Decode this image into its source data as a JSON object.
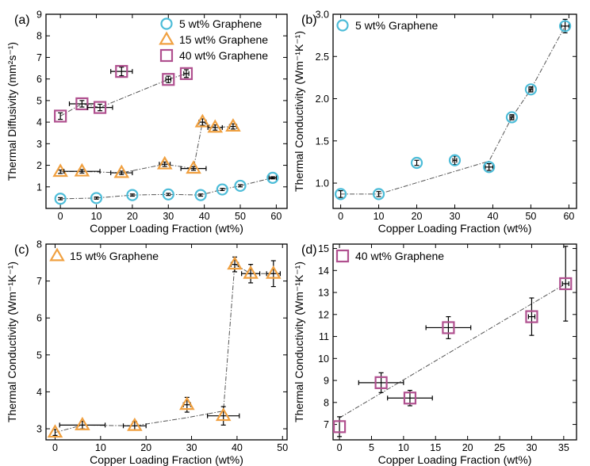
{
  "colors": {
    "s5": "#4cbcd8",
    "s15": "#f0a040",
    "s40": "#b0508f"
  },
  "chart_data": [
    {
      "id": "a",
      "type": "scatter",
      "panel_label": "(a)",
      "xlabel": "Copper Loading Fraction (wt%)",
      "ylabel": "Thermal Diffusivity (mm²s⁻¹)",
      "xlim": [
        -4,
        63
      ],
      "ylim": [
        0,
        9
      ],
      "xticks": [
        0,
        10,
        20,
        30,
        40,
        50,
        60
      ],
      "yticks": [
        1,
        2,
        3,
        4,
        5,
        6,
        7,
        8,
        9
      ],
      "legend_position": "top-right",
      "series": [
        {
          "name": "5 wt% Graphene",
          "marker": "circle",
          "color": "#4cbcd8",
          "points": [
            [
              0,
              0.45,
              0,
              0.05
            ],
            [
              10,
              0.48,
              0,
              0.05
            ],
            [
              20,
              0.62,
              0,
              0.05
            ],
            [
              30,
              0.65,
              0,
              0.05
            ],
            [
              39,
              0.62,
              0,
              0.05
            ],
            [
              45,
              0.88,
              0,
              0.05
            ],
            [
              50,
              1.05,
              0,
              0.05
            ],
            [
              59,
              1.42,
              1,
              0.05
            ]
          ],
          "fit": [
            [
              0,
              0.45
            ],
            [
              10,
              0.48
            ],
            [
              20,
              0.62
            ],
            [
              30,
              0.65
            ],
            [
              39,
              0.62
            ],
            [
              45,
              0.88
            ],
            [
              50,
              1.05
            ],
            [
              59,
              1.42
            ]
          ]
        },
        {
          "name": "15 wt% Graphene",
          "marker": "triangle",
          "color": "#f0a040",
          "points": [
            [
              0,
              1.7,
              0,
              0.08
            ],
            [
              6,
              1.72,
              5,
              0.08
            ],
            [
              17,
              1.65,
              3,
              0.08
            ],
            [
              29,
              2.05,
              1.5,
              0.1
            ],
            [
              37,
              1.85,
              3.5,
              0.08
            ],
            [
              39.5,
              4.0,
              1,
              0.15
            ],
            [
              43,
              3.75,
              2,
              0.12
            ],
            [
              48,
              3.8,
              1,
              0.12
            ]
          ],
          "fit": [
            [
              0,
              1.7
            ],
            [
              6,
              1.72
            ],
            [
              17,
              1.65
            ],
            [
              29,
              2.05
            ],
            [
              37,
              1.85
            ],
            [
              39.5,
              4.0
            ],
            [
              43,
              3.75
            ],
            [
              48,
              3.8
            ]
          ]
        },
        {
          "name": "40 wt% Graphene",
          "marker": "square",
          "color": "#b0508f",
          "points": [
            [
              0,
              4.28,
              0,
              0.15
            ],
            [
              6,
              4.85,
              3.5,
              0.15
            ],
            [
              11,
              4.68,
              3.5,
              0.15
            ],
            [
              17,
              6.35,
              3,
              0.2
            ],
            [
              30,
              5.98,
              0.7,
              0.15
            ],
            [
              35,
              6.25,
              0.7,
              0.18
            ]
          ],
          "fit": [
            [
              0,
              4.28
            ],
            [
              6,
              4.85
            ],
            [
              11,
              4.68
            ],
            [
              30,
              5.98
            ],
            [
              35,
              6.25
            ]
          ]
        }
      ]
    },
    {
      "id": "b",
      "type": "scatter",
      "panel_label": "(b)",
      "xlabel": "Copper Loading Fraction (wt%)",
      "ylabel": "Thermal Conductivity (Wm⁻¹K⁻¹)",
      "xlim": [
        -2,
        62
      ],
      "ylim": [
        0.7,
        3.0
      ],
      "xticks": [
        0,
        10,
        20,
        30,
        40,
        50,
        60
      ],
      "yticks": [
        1.0,
        1.5,
        2.0,
        2.5,
        3.0
      ],
      "ytick_labels": [
        "1.0",
        "1.5",
        "2.0",
        "2.5",
        "3.0"
      ],
      "legend_position": "top-left",
      "series": [
        {
          "name": "5 wt% Graphene",
          "marker": "circle",
          "color": "#4cbcd8",
          "points": [
            [
              0,
              0.87,
              0,
              0.04
            ],
            [
              10,
              0.87,
              0,
              0.03
            ],
            [
              20,
              1.24,
              0,
              0.03
            ],
            [
              30,
              1.27,
              0.5,
              0.05
            ],
            [
              39,
              1.19,
              1,
              0.04
            ],
            [
              45,
              1.78,
              0.5,
              0.03
            ],
            [
              50,
              2.11,
              0.5,
              0.03
            ],
            [
              59,
              2.86,
              1,
              0.08
            ]
          ],
          "fit": [
            [
              0,
              0.87
            ],
            [
              10,
              0.87
            ],
            [
              39,
              1.26
            ],
            [
              45,
              1.78
            ],
            [
              50,
              2.11
            ],
            [
              59,
              2.86
            ]
          ]
        }
      ]
    },
    {
      "id": "c",
      "type": "scatter",
      "panel_label": "(c)",
      "xlabel": "Copper Loading Fraction (wt%)",
      "ylabel": "Thermal Conductivity (Wm⁻¹K⁻¹)",
      "xlim": [
        -2,
        51
      ],
      "ylim": [
        2.7,
        8
      ],
      "xticks": [
        0,
        10,
        20,
        30,
        40,
        50
      ],
      "yticks": [
        3,
        4,
        5,
        6,
        7,
        8
      ],
      "legend_position": "top-left",
      "series": [
        {
          "name": "15 wt% Graphene",
          "marker": "triangle",
          "color": "#f0a040",
          "points": [
            [
              0,
              2.9,
              0,
              0.08
            ],
            [
              6,
              3.1,
              5,
              0.1
            ],
            [
              17.5,
              3.08,
              2.5,
              0.12
            ],
            [
              29,
              3.65,
              0.8,
              0.2
            ],
            [
              37,
              3.35,
              3.5,
              0.25
            ],
            [
              39.5,
              7.45,
              0.8,
              0.2
            ],
            [
              43,
              7.2,
              2,
              0.25
            ],
            [
              48,
              7.2,
              1.5,
              0.35
            ]
          ],
          "fit": [
            [
              0,
              2.9
            ],
            [
              6,
              3.1
            ],
            [
              17.5,
              3.08
            ],
            [
              29,
              3.3
            ],
            [
              37,
              3.48
            ],
            [
              39.5,
              7.45
            ],
            [
              43,
              7.2
            ],
            [
              48,
              7.2
            ]
          ]
        }
      ]
    },
    {
      "id": "d",
      "type": "scatter",
      "panel_label": "(d)",
      "xlabel": "Copper Loading Fraction (wt%)",
      "ylabel": "Thermal Conductivity (Wm⁻¹K⁻¹)",
      "xlim": [
        -1,
        37
      ],
      "ylim": [
        6.3,
        15.2
      ],
      "xticks": [
        0,
        5,
        10,
        15,
        20,
        25,
        30,
        35
      ],
      "yticks": [
        7,
        8,
        9,
        10,
        11,
        12,
        13,
        14,
        15
      ],
      "legend_position": "top-left",
      "series": [
        {
          "name": "40 wt% Graphene",
          "marker": "square",
          "color": "#b0508f",
          "points": [
            [
              0,
              6.9,
              0,
              0.45
            ],
            [
              6.5,
              8.9,
              3.5,
              0.45
            ],
            [
              11,
              8.2,
              3.5,
              0.35
            ],
            [
              17,
              11.4,
              3.5,
              0.5
            ],
            [
              30,
              11.9,
              0.5,
              0.85
            ],
            [
              35.3,
              13.4,
              0.5,
              1.7
            ]
          ],
          "fit": [
            [
              0,
              7.3
            ],
            [
              35.3,
              13.4
            ]
          ]
        }
      ]
    }
  ]
}
